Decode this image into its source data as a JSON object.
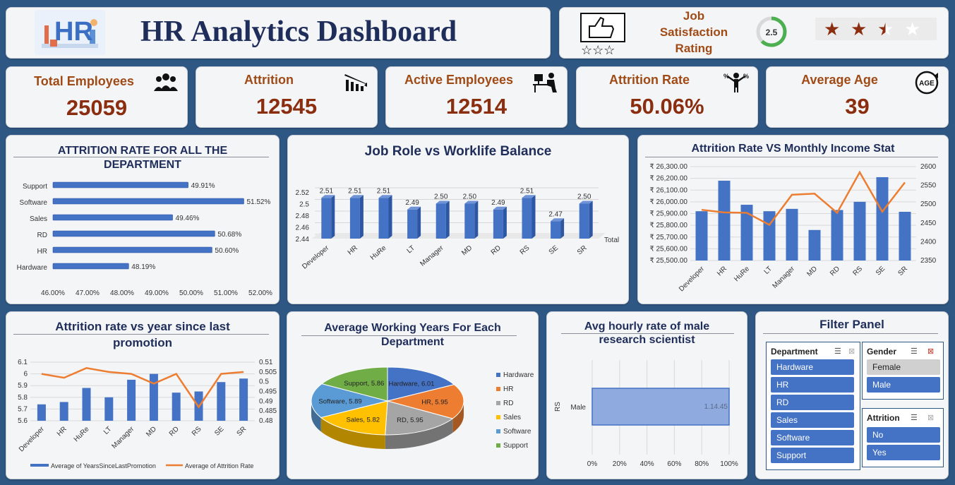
{
  "header": {
    "title": "HR Analytics Dashboard",
    "logo_text": "HR"
  },
  "rating": {
    "label_line1": "Job",
    "label_line2": "Satisfaction",
    "label_line3": "Rating",
    "gauge_value": "2.5",
    "value": 2.5,
    "max": 4,
    "stars_filled": 2.5,
    "star_glyph": "★"
  },
  "kpis": [
    {
      "label": "Total Employees",
      "value": "25059",
      "icon": "people-group-icon"
    },
    {
      "label": "Attrition",
      "value": "12545",
      "icon": "people-decline-icon"
    },
    {
      "label": "Active Employees",
      "value": "12514",
      "icon": "desk-worker-icon"
    },
    {
      "label": "Attrition Rate",
      "value": "50.06%",
      "icon": "person-percent-icon"
    },
    {
      "label": "Average Age",
      "value": "39",
      "icon": "age-icon"
    }
  ],
  "age_icon_text": "AGE",
  "colors": {
    "bar_blue": "#4472c4",
    "line_orange": "#ed7d31",
    "kpi_brown": "#8b2e10",
    "title_navy": "#1f2d5a",
    "background": "#2f5784"
  },
  "chart_data": [
    {
      "id": "dept_attrition",
      "type": "bar",
      "orientation": "horizontal",
      "title_line1": "ATTRITION RATE FOR ALL THE",
      "title_line2": "DEPARTMENT",
      "categories": [
        "Support",
        "Software",
        "Sales",
        "RD",
        "HR",
        "Hardware"
      ],
      "values": [
        49.91,
        51.52,
        49.46,
        50.68,
        50.6,
        48.19
      ],
      "labels": [
        "49.91%",
        "51.52%",
        "49.46%",
        "50.68%",
        "50.60%",
        "48.19%"
      ],
      "xlim": [
        46,
        52
      ],
      "xticks": [
        "46.00%",
        "47.00%",
        "48.00%",
        "49.00%",
        "50.00%",
        "51.00%",
        "52.00%"
      ]
    },
    {
      "id": "jobrole_worklife",
      "type": "bar",
      "title": "Job Role vs Worklife Balance",
      "categories": [
        "Developer",
        "HR",
        "HuRe",
        "LT",
        "Manager",
        "MD",
        "RD",
        "RS",
        "SE",
        "SR"
      ],
      "values": [
        2.51,
        2.51,
        2.51,
        2.49,
        2.5,
        2.5,
        2.49,
        2.51,
        2.47,
        2.5
      ],
      "labels": [
        "2.51",
        "2.51",
        "2.51",
        "2.49",
        "2.50",
        "2.50",
        "2.49",
        "2.51",
        "2.47",
        "2.50"
      ],
      "ylim": [
        2.44,
        2.52
      ],
      "yticks": [
        "2.52",
        "2.5",
        "2.48",
        "2.46",
        "2.44"
      ],
      "legend": "Total"
    },
    {
      "id": "attrition_income",
      "type": "bar",
      "title": "Attrition Rate VS Monthly Income Stat",
      "categories": [
        "Developer",
        "HR",
        "HuRe",
        "LT",
        "Manager",
        "MD",
        "RD",
        "RS",
        "SE",
        "SR"
      ],
      "bar_values": [
        25920,
        26180,
        25975,
        25920,
        25940,
        25760,
        25930,
        26000,
        26210,
        25915
      ],
      "line_values": [
        2485,
        2478,
        2477,
        2445,
        2525,
        2528,
        2477,
        2585,
        2480,
        2558
      ],
      "ylim_left": [
        25500,
        26300
      ],
      "yticks_left": [
        "₹ 26,300.00",
        "₹ 26,200.00",
        "₹ 26,100.00",
        "₹ 26,000.00",
        "₹ 25,900.00",
        "₹ 25,800.00",
        "₹ 25,700.00",
        "₹ 25,600.00",
        "₹ 25,500.00"
      ],
      "ylim_right": [
        2350,
        2600
      ],
      "yticks_right": [
        "2600",
        "2550",
        "2500",
        "2450",
        "2400",
        "2350"
      ]
    },
    {
      "id": "promotion_attrition",
      "type": "bar",
      "title_line1": "Attrition rate vs year since last",
      "title_line2": "promotion",
      "categories": [
        "Developer",
        "HR",
        "HuRe",
        "LT",
        "Manager",
        "MD",
        "RD",
        "RS",
        "SE",
        "SR"
      ],
      "bar_values": [
        5.74,
        5.76,
        5.88,
        5.8,
        5.95,
        6.0,
        5.84,
        5.85,
        5.93,
        5.96
      ],
      "line_values": [
        0.504,
        0.502,
        0.507,
        0.505,
        0.504,
        0.499,
        0.504,
        0.487,
        0.504,
        0.505
      ],
      "ylim_left": [
        5.6,
        6.1
      ],
      "yticks_left": [
        "6.1",
        "6",
        "5.9",
        "5.8",
        "5.7",
        "5.6"
      ],
      "ylim_right": [
        0.48,
        0.51
      ],
      "yticks_right": [
        "0.51",
        "0.505",
        "0.5",
        "0.495",
        "0.49",
        "0.485",
        "0.48"
      ],
      "legend": [
        "Average of YearsSinceLastPromotion",
        "Average of Attrition Rate"
      ]
    },
    {
      "id": "working_years_pie",
      "type": "pie",
      "title_line1": "Average Working Years For Each",
      "title_line2": "Department",
      "categories": [
        "Hardware",
        "HR",
        "RD",
        "Sales",
        "Software",
        "Support"
      ],
      "values": [
        6.01,
        5.95,
        5.95,
        5.82,
        5.89,
        5.86
      ],
      "labels": [
        "Hardware, 6.01",
        "HR, 5.95",
        "RD, 5.95",
        "Sales, 5.82",
        "Software, 5.89",
        "Support, 5.86"
      ],
      "colors": [
        "#4472c4",
        "#ed7d31",
        "#a5a5a5",
        "#ffc000",
        "#5b9bd5",
        "#70ad47"
      ]
    },
    {
      "id": "hourly_rate",
      "type": "bar",
      "orientation": "horizontal",
      "title_line1": "Avg hourly rate of male",
      "title_line2": "research scientist",
      "group_label": "RS",
      "category": "Male",
      "value_label": "1.14.45",
      "value_pct": 100,
      "xticks": [
        "0%",
        "20%",
        "40%",
        "60%",
        "80%",
        "100%"
      ]
    }
  ],
  "filter_panel": {
    "title": "Filter Panel",
    "department": {
      "header": "Department",
      "items": [
        "Hardware",
        "HR",
        "RD",
        "Sales",
        "Software",
        "Support"
      ]
    },
    "gender": {
      "header": "Gender",
      "items": [
        "Female",
        "Male"
      ],
      "selected": "Female"
    },
    "attrition": {
      "header": "Attrition",
      "items": [
        "No",
        "Yes"
      ]
    },
    "multiselect_icon": "☰",
    "clear_icon": "⊠"
  }
}
